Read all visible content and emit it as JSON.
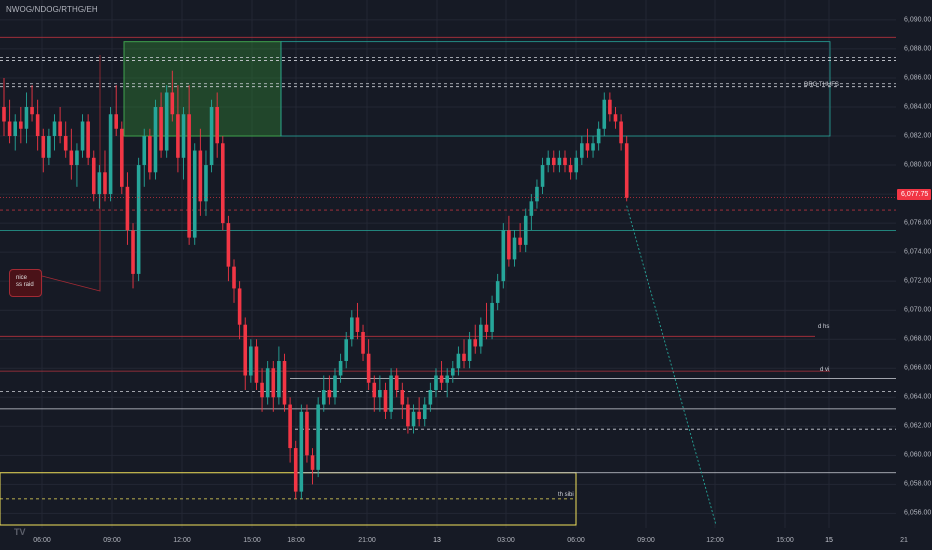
{
  "header": {
    "symbol": "NWOG/NDOG/RTHG/EH"
  },
  "price_axis": {
    "ticks": [
      "6,090.00",
      "6,088.00",
      "6,086.00",
      "6,084.00",
      "6,082.00",
      "6,080.00",
      "6,078.00",
      "6,076.00",
      "6,074.00",
      "6,072.00",
      "6,070.00",
      "6,068.00",
      "6,066.00",
      "6,064.00",
      "6,062.00",
      "6,060.00",
      "6,058.00",
      "6,056.00"
    ],
    "last_price": "6,077.75"
  },
  "time_axis": {
    "ticks": [
      {
        "label": "06:00",
        "bold": false
      },
      {
        "label": "09:00",
        "bold": false
      },
      {
        "label": "12:00",
        "bold": false
      },
      {
        "label": "15:00",
        "bold": false
      },
      {
        "label": "18:00",
        "bold": false
      },
      {
        "label": "21:00",
        "bold": false
      },
      {
        "label": "13",
        "bold": true
      },
      {
        "label": "03:00",
        "bold": false
      },
      {
        "label": "06:00",
        "bold": false
      },
      {
        "label": "09:00",
        "bold": false
      },
      {
        "label": "12:00",
        "bold": false
      },
      {
        "label": "15:00",
        "bold": false
      },
      {
        "label": "15",
        "bold": true
      },
      {
        "label": "21",
        "bold": false
      }
    ]
  },
  "annotations": {
    "callout_line1": "nice",
    "callout_line2": "ss raid",
    "zone_top": "DRG THUFS",
    "level_dhs": "d hs",
    "level_dvi": "d vi",
    "level_thsibi": "th sibi"
  },
  "colors": {
    "background": "#161a25",
    "bull": "#26a69a",
    "bear": "#f23645",
    "grid": "#232734",
    "fvg_zone": "#2e7d32",
    "ob_zone": "#f0e05a",
    "level_red": "#b2313d",
    "level_white": "#cfd2d9",
    "projection": "#26a69a"
  },
  "chart_data": {
    "type": "candlestick",
    "symbol": "NWOG/NDOG/RTHG/EH",
    "ylim": [
      6055.0,
      6091.0
    ],
    "last_price": 6077.75,
    "x_tick_labels": [
      "06:00",
      "09:00",
      "12:00",
      "15:00",
      "18:00",
      "21:00",
      "13",
      "03:00",
      "06:00",
      "09:00",
      "12:00",
      "15:00",
      "15",
      "21"
    ],
    "candles": [
      {
        "o": 6084.0,
        "h": 6086.0,
        "l": 6082.0,
        "c": 6083.0
      },
      {
        "o": 6083.0,
        "h": 6084.5,
        "l": 6081.5,
        "c": 6082.0
      },
      {
        "o": 6082.0,
        "h": 6083.5,
        "l": 6081.0,
        "c": 6083.0
      },
      {
        "o": 6083.0,
        "h": 6084.0,
        "l": 6081.5,
        "c": 6082.5
      },
      {
        "o": 6082.5,
        "h": 6085.0,
        "l": 6081.5,
        "c": 6084.0
      },
      {
        "o": 6084.0,
        "h": 6085.5,
        "l": 6083.0,
        "c": 6083.5
      },
      {
        "o": 6083.5,
        "h": 6084.5,
        "l": 6081.0,
        "c": 6082.0
      },
      {
        "o": 6082.0,
        "h": 6082.5,
        "l": 6079.5,
        "c": 6080.5
      },
      {
        "o": 6080.5,
        "h": 6082.5,
        "l": 6080.0,
        "c": 6082.0
      },
      {
        "o": 6082.0,
        "h": 6083.5,
        "l": 6081.0,
        "c": 6083.0
      },
      {
        "o": 6083.0,
        "h": 6084.0,
        "l": 6081.5,
        "c": 6082.0
      },
      {
        "o": 6082.0,
        "h": 6083.0,
        "l": 6080.5,
        "c": 6081.0
      },
      {
        "o": 6081.0,
        "h": 6082.5,
        "l": 6079.0,
        "c": 6080.0
      },
      {
        "o": 6080.0,
        "h": 6081.5,
        "l": 6078.5,
        "c": 6081.0
      },
      {
        "o": 6081.0,
        "h": 6083.5,
        "l": 6080.5,
        "c": 6083.0
      },
      {
        "o": 6083.0,
        "h": 6083.5,
        "l": 6080.0,
        "c": 6080.5
      },
      {
        "o": 6080.5,
        "h": 6081.0,
        "l": 6077.5,
        "c": 6078.0
      },
      {
        "o": 6078.0,
        "h": 6080.0,
        "l": 6077.0,
        "c": 6079.5
      },
      {
        "o": 6079.5,
        "h": 6081.0,
        "l": 6077.5,
        "c": 6078.0
      },
      {
        "o": 6078.0,
        "h": 6084.0,
        "l": 6077.5,
        "c": 6083.5
      },
      {
        "o": 6083.5,
        "h": 6085.5,
        "l": 6082.0,
        "c": 6082.5
      },
      {
        "o": 6082.5,
        "h": 6083.0,
        "l": 6078.0,
        "c": 6078.5
      },
      {
        "o": 6078.5,
        "h": 6079.5,
        "l": 6074.5,
        "c": 6075.5
      },
      {
        "o": 6075.5,
        "h": 6076.0,
        "l": 6071.5,
        "c": 6072.5
      },
      {
        "o": 6072.5,
        "h": 6080.5,
        "l": 6072.0,
        "c": 6080.0
      },
      {
        "o": 6080.0,
        "h": 6082.5,
        "l": 6078.5,
        "c": 6082.0
      },
      {
        "o": 6082.0,
        "h": 6082.5,
        "l": 6079.0,
        "c": 6079.5
      },
      {
        "o": 6079.5,
        "h": 6084.5,
        "l": 6079.0,
        "c": 6084.0
      },
      {
        "o": 6084.0,
        "h": 6085.0,
        "l": 6080.5,
        "c": 6081.0
      },
      {
        "o": 6081.0,
        "h": 6085.5,
        "l": 6080.5,
        "c": 6085.0
      },
      {
        "o": 6085.0,
        "h": 6086.5,
        "l": 6083.0,
        "c": 6083.5
      },
      {
        "o": 6083.5,
        "h": 6085.5,
        "l": 6079.5,
        "c": 6080.5
      },
      {
        "o": 6080.5,
        "h": 6084.0,
        "l": 6079.0,
        "c": 6083.5
      },
      {
        "o": 6083.5,
        "h": 6085.5,
        "l": 6074.5,
        "c": 6075.0
      },
      {
        "o": 6075.0,
        "h": 6081.5,
        "l": 6074.5,
        "c": 6081.0
      },
      {
        "o": 6081.0,
        "h": 6082.5,
        "l": 6076.5,
        "c": 6077.5
      },
      {
        "o": 6077.5,
        "h": 6081.0,
        "l": 6076.5,
        "c": 6080.0
      },
      {
        "o": 6080.0,
        "h": 6084.5,
        "l": 6079.5,
        "c": 6084.0
      },
      {
        "o": 6084.0,
        "h": 6085.0,
        "l": 6080.5,
        "c": 6081.5
      },
      {
        "o": 6081.5,
        "h": 6082.0,
        "l": 6075.5,
        "c": 6076.0
      },
      {
        "o": 6076.0,
        "h": 6076.5,
        "l": 6072.0,
        "c": 6073.0
      },
      {
        "o": 6073.0,
        "h": 6073.5,
        "l": 6070.5,
        "c": 6071.5
      },
      {
        "o": 6071.5,
        "h": 6072.0,
        "l": 6068.0,
        "c": 6069.0
      },
      {
        "o": 6069.0,
        "h": 6069.5,
        "l": 6064.5,
        "c": 6065.5
      },
      {
        "o": 6065.5,
        "h": 6068.0,
        "l": 6065.0,
        "c": 6067.5
      },
      {
        "o": 6067.5,
        "h": 6068.0,
        "l": 6064.5,
        "c": 6065.0
      },
      {
        "o": 6065.0,
        "h": 6066.0,
        "l": 6063.0,
        "c": 6064.0
      },
      {
        "o": 6064.0,
        "h": 6066.5,
        "l": 6063.5,
        "c": 6066.0
      },
      {
        "o": 6066.0,
        "h": 6066.5,
        "l": 6063.0,
        "c": 6064.0
      },
      {
        "o": 6064.0,
        "h": 6067.5,
        "l": 6063.5,
        "c": 6066.5
      },
      {
        "o": 6066.5,
        "h": 6067.0,
        "l": 6063.0,
        "c": 6063.5
      },
      {
        "o": 6063.5,
        "h": 6064.0,
        "l": 6059.5,
        "c": 6060.5
      },
      {
        "o": 6060.5,
        "h": 6061.0,
        "l": 6057.0,
        "c": 6057.5
      },
      {
        "o": 6057.5,
        "h": 6063.5,
        "l": 6057.0,
        "c": 6063.0
      },
      {
        "o": 6063.0,
        "h": 6063.5,
        "l": 6059.5,
        "c": 6060.0
      },
      {
        "o": 6060.0,
        "h": 6060.5,
        "l": 6058.0,
        "c": 6059.0
      },
      {
        "o": 6059.0,
        "h": 6064.0,
        "l": 6058.5,
        "c": 6063.5
      },
      {
        "o": 6063.5,
        "h": 6065.5,
        "l": 6063.0,
        "c": 6064.5
      },
      {
        "o": 6064.5,
        "h": 6065.5,
        "l": 6063.5,
        "c": 6064.0
      },
      {
        "o": 6064.0,
        "h": 6066.0,
        "l": 6063.5,
        "c": 6065.5
      },
      {
        "o": 6065.5,
        "h": 6067.0,
        "l": 6065.0,
        "c": 6066.5
      },
      {
        "o": 6066.5,
        "h": 6068.5,
        "l": 6066.0,
        "c": 6068.0
      },
      {
        "o": 6068.0,
        "h": 6070.0,
        "l": 6067.5,
        "c": 6069.5
      },
      {
        "o": 6069.5,
        "h": 6070.5,
        "l": 6068.0,
        "c": 6068.5
      },
      {
        "o": 6068.5,
        "h": 6069.0,
        "l": 6066.5,
        "c": 6067.0
      },
      {
        "o": 6067.0,
        "h": 6068.0,
        "l": 6064.5,
        "c": 6065.0
      },
      {
        "o": 6065.0,
        "h": 6065.5,
        "l": 6063.0,
        "c": 6064.0
      },
      {
        "o": 6064.0,
        "h": 6065.5,
        "l": 6063.0,
        "c": 6064.5
      },
      {
        "o": 6064.5,
        "h": 6065.0,
        "l": 6062.5,
        "c": 6063.0
      },
      {
        "o": 6063.0,
        "h": 6066.0,
        "l": 6062.5,
        "c": 6065.5
      },
      {
        "o": 6065.5,
        "h": 6066.0,
        "l": 6064.0,
        "c": 6064.5
      },
      {
        "o": 6064.5,
        "h": 6065.0,
        "l": 6062.5,
        "c": 6063.5
      },
      {
        "o": 6063.5,
        "h": 6064.0,
        "l": 6061.5,
        "c": 6062.0
      },
      {
        "o": 6062.0,
        "h": 6063.5,
        "l": 6061.5,
        "c": 6063.0
      },
      {
        "o": 6063.0,
        "h": 6064.0,
        "l": 6062.0,
        "c": 6062.5
      },
      {
        "o": 6062.5,
        "h": 6064.0,
        "l": 6062.0,
        "c": 6063.5
      },
      {
        "o": 6063.5,
        "h": 6065.0,
        "l": 6063.0,
        "c": 6064.5
      },
      {
        "o": 6064.5,
        "h": 6066.0,
        "l": 6064.0,
        "c": 6065.5
      },
      {
        "o": 6065.5,
        "h": 6066.5,
        "l": 6064.5,
        "c": 6065.0
      },
      {
        "o": 6065.0,
        "h": 6066.0,
        "l": 6064.0,
        "c": 6065.5
      },
      {
        "o": 6065.5,
        "h": 6066.5,
        "l": 6065.0,
        "c": 6066.0
      },
      {
        "o": 6066.0,
        "h": 6067.5,
        "l": 6065.5,
        "c": 6067.0
      },
      {
        "o": 6067.0,
        "h": 6068.0,
        "l": 6066.0,
        "c": 6066.5
      },
      {
        "o": 6066.5,
        "h": 6068.5,
        "l": 6066.0,
        "c": 6068.0
      },
      {
        "o": 6068.0,
        "h": 6069.0,
        "l": 6067.0,
        "c": 6067.5
      },
      {
        "o": 6067.5,
        "h": 6069.5,
        "l": 6067.0,
        "c": 6069.0
      },
      {
        "o": 6069.0,
        "h": 6070.5,
        "l": 6068.0,
        "c": 6068.5
      },
      {
        "o": 6068.5,
        "h": 6071.0,
        "l": 6068.0,
        "c": 6070.5
      },
      {
        "o": 6070.5,
        "h": 6072.5,
        "l": 6070.0,
        "c": 6072.0
      },
      {
        "o": 6072.0,
        "h": 6076.0,
        "l": 6071.5,
        "c": 6075.5
      },
      {
        "o": 6075.5,
        "h": 6076.5,
        "l": 6073.0,
        "c": 6073.5
      },
      {
        "o": 6073.5,
        "h": 6075.5,
        "l": 6073.0,
        "c": 6075.0
      },
      {
        "o": 6075.0,
        "h": 6076.0,
        "l": 6074.0,
        "c": 6074.5
      },
      {
        "o": 6074.5,
        "h": 6077.0,
        "l": 6074.0,
        "c": 6076.5
      },
      {
        "o": 6076.5,
        "h": 6078.0,
        "l": 6075.5,
        "c": 6077.5
      },
      {
        "o": 6077.5,
        "h": 6079.0,
        "l": 6077.0,
        "c": 6078.5
      },
      {
        "o": 6078.5,
        "h": 6080.5,
        "l": 6078.0,
        "c": 6080.0
      },
      {
        "o": 6080.0,
        "h": 6081.0,
        "l": 6079.5,
        "c": 6080.5
      },
      {
        "o": 6080.5,
        "h": 6081.0,
        "l": 6079.5,
        "c": 6080.0
      },
      {
        "o": 6080.0,
        "h": 6081.0,
        "l": 6079.5,
        "c": 6080.5
      },
      {
        "o": 6080.5,
        "h": 6081.0,
        "l": 6079.5,
        "c": 6080.0
      },
      {
        "o": 6080.0,
        "h": 6080.5,
        "l": 6079.0,
        "c": 6079.5
      },
      {
        "o": 6079.5,
        "h": 6081.0,
        "l": 6079.0,
        "c": 6080.5
      },
      {
        "o": 6080.5,
        "h": 6082.0,
        "l": 6080.0,
        "c": 6081.5
      },
      {
        "o": 6081.5,
        "h": 6082.5,
        "l": 6080.5,
        "c": 6081.0
      },
      {
        "o": 6081.0,
        "h": 6082.0,
        "l": 6080.5,
        "c": 6081.5
      },
      {
        "o": 6081.5,
        "h": 6083.0,
        "l": 6081.0,
        "c": 6082.5
      },
      {
        "o": 6082.5,
        "h": 6085.0,
        "l": 6082.0,
        "c": 6084.5
      },
      {
        "o": 6084.5,
        "h": 6085.0,
        "l": 6083.0,
        "c": 6083.5
      },
      {
        "o": 6083.5,
        "h": 6084.0,
        "l": 6082.5,
        "c": 6083.0
      },
      {
        "o": 6083.0,
        "h": 6083.5,
        "l": 6081.0,
        "c": 6081.5
      },
      {
        "o": 6081.5,
        "h": 6082.0,
        "l": 6077.5,
        "c": 6077.75
      }
    ],
    "zones": [
      {
        "label": "",
        "type": "fvg",
        "y_top": 6088.5,
        "y_bottom": 6082.0
      },
      {
        "label": "DRG THUFS",
        "type": "outline-teal",
        "y_top": 6088.5,
        "y_bottom": 6082.0
      },
      {
        "label": "th sibi",
        "type": "outline-yellow",
        "y_top": 6058.8,
        "y_bottom": 6055.2
      }
    ],
    "levels": [
      {
        "label": "",
        "price": 6088.8,
        "style": "solid-red"
      },
      {
        "label": "",
        "price": 6087.4,
        "style": "dashed-white"
      },
      {
        "label": "",
        "price": 6085.6,
        "style": "dashed-white"
      },
      {
        "label": "",
        "price": 6076.9,
        "style": "dashed-red"
      },
      {
        "label": "",
        "price": 6075.5,
        "style": "solid-teal"
      },
      {
        "label": "d hs",
        "price": 6068.2,
        "style": "solid-red"
      },
      {
        "label": "d vi",
        "price": 6065.8,
        "style": "solid-red"
      },
      {
        "label": "",
        "price": 6065.3,
        "style": "solid-white"
      },
      {
        "label": "",
        "price": 6064.4,
        "style": "dashed-white"
      },
      {
        "label": "",
        "price": 6063.2,
        "style": "solid-white"
      },
      {
        "label": "",
        "price": 6061.8,
        "style": "dashed-white"
      },
      {
        "label": "",
        "price": 6058.8,
        "style": "solid-white"
      }
    ]
  }
}
